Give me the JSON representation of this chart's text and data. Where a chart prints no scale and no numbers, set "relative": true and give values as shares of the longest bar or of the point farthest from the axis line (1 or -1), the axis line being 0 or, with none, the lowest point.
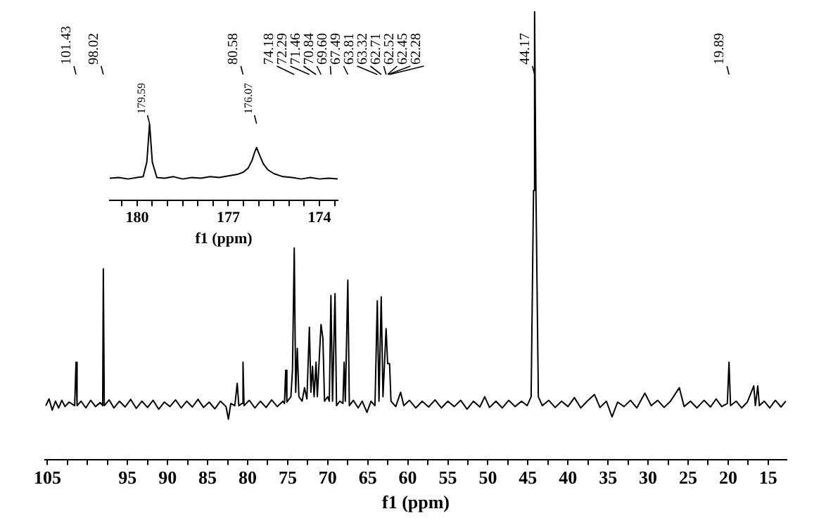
{
  "chart_data": [
    {
      "type": "line",
      "relative": true,
      "xlabel": "f1 (ppm)",
      "xlim": [
        105.3,
        12.7
      ],
      "xticks": [
        105,
        {
          "value": 102.5,
          "label": null
        },
        {
          "value": 100,
          "label": null
        },
        {
          "value": 97.5,
          "label": null
        },
        95,
        {
          "value": 92.5,
          "label": null
        },
        90,
        {
          "value": 87.5,
          "label": null
        },
        85,
        {
          "value": 82.5,
          "label": null
        },
        80,
        {
          "value": 77.5,
          "label": null
        },
        75,
        {
          "value": 72.5,
          "label": null
        },
        70,
        {
          "value": 67.5,
          "label": null
        },
        65,
        {
          "value": 62.5,
          "label": null
        },
        60,
        {
          "value": 57.5,
          "label": null
        },
        55,
        {
          "value": 52.5,
          "label": null
        },
        50,
        {
          "value": 47.5,
          "label": null
        },
        45,
        {
          "value": 42.5,
          "label": null
        },
        40,
        {
          "value": 37.5,
          "label": null
        },
        35,
        {
          "value": 32.5,
          "label": null
        },
        30,
        {
          "value": 27.5,
          "label": null
        },
        25,
        {
          "value": 22.5,
          "label": null
        },
        20,
        {
          "value": 17.5,
          "label": null
        },
        15
      ],
      "series": [
        {
          "color": "#000000",
          "x": [
            105.2,
            104.8,
            104.4,
            104,
            103.6,
            103.2,
            102.8,
            102.3,
            101.6,
            101.43,
            101.3,
            100.8,
            100.2,
            99.6,
            99,
            98.4,
            98.1,
            98.02,
            97.9,
            97.3,
            96.7,
            96,
            95.3,
            94.6,
            93.9,
            93.2,
            92.5,
            91.8,
            91.1,
            90.4,
            89.7,
            89,
            88.3,
            87.6,
            86.9,
            86.2,
            85.5,
            84.8,
            84.1,
            83.4,
            82.7,
            82.4,
            82.1,
            81.6,
            81.3,
            81.1,
            80.7,
            80.58,
            80.45,
            79.8,
            79.1,
            78.4,
            77.7,
            77,
            76.3,
            75.6,
            75.4,
            75.25,
            75.1,
            74.6,
            74.4,
            74.18,
            74,
            73.8,
            73.6,
            73.2,
            72.9,
            72.6,
            72.29,
            72.1,
            71.9,
            71.7,
            71.46,
            71.3,
            70.84,
            70.6,
            70.4,
            70,
            69.8,
            69.6,
            69.4,
            69.09,
            68.9,
            68.5,
            68.1,
            67.95,
            67.8,
            67.49,
            67.3,
            66.8,
            66.2,
            65.7,
            65.1,
            64.6,
            64.1,
            63.81,
            63.6,
            63.32,
            63.1,
            62.71,
            62.52,
            62.45,
            62.28,
            62.1,
            61.5,
            60.9,
            60.5,
            59.8,
            59,
            58.2,
            57.4,
            56.6,
            55.8,
            55,
            54.2,
            53.4,
            52.6,
            51.8,
            51,
            50.4,
            49.8,
            49,
            48.2,
            47.4,
            46.6,
            45.8,
            45.1,
            44.6,
            44.3,
            44.17,
            44,
            43.7,
            43.2,
            42.4,
            41.6,
            40.8,
            40,
            39.2,
            38.4,
            37.6,
            36.7,
            36,
            35.2,
            34.5,
            33.8,
            33,
            32.2,
            31.4,
            30.4,
            29.6,
            28.8,
            28,
            27.2,
            26.1,
            25.5,
            24.7,
            23.9,
            23,
            22.2,
            21.5,
            20.8,
            20.1,
            19.89,
            19.7,
            19,
            18.3,
            17.6,
            16.8,
            16.6,
            16.3,
            16.1,
            15.5,
            14.8,
            14.1,
            13.4,
            12.8
          ],
          "values": [
            0.12,
            0.135,
            0.11,
            0.13,
            0.115,
            0.132,
            0.118,
            0.128,
            0.12,
            0.217,
            0.12,
            0.13,
            0.115,
            0.132,
            0.118,
            0.127,
            0.12,
            0.425,
            0.12,
            0.133,
            0.115,
            0.13,
            0.117,
            0.134,
            0.114,
            0.13,
            0.116,
            0.132,
            0.112,
            0.128,
            0.118,
            0.133,
            0.115,
            0.13,
            0.117,
            0.134,
            0.116,
            0.128,
            0.113,
            0.13,
            0.118,
            0.09,
            0.125,
            0.12,
            0.17,
            0.12,
            0.125,
            0.217,
            0.12,
            0.132,
            0.115,
            0.13,
            0.116,
            0.133,
            0.118,
            0.13,
            0.125,
            0.199,
            0.128,
            0.14,
            0.2,
            0.472,
            0.15,
            0.248,
            0.14,
            0.13,
            0.16,
            0.135,
            0.295,
            0.15,
            0.208,
            0.14,
            0.217,
            0.14,
            0.301,
            0.27,
            0.13,
            0.14,
            0.13,
            0.366,
            0.13,
            0.37,
            0.12,
            0.13,
            0.125,
            0.217,
            0.13,
            0.4,
            0.12,
            0.132,
            0.115,
            0.13,
            0.105,
            0.13,
            0.12,
            0.354,
            0.13,
            0.363,
            0.14,
            0.292,
            0.214,
            0.214,
            0.214,
            0.13,
            0.118,
            0.15,
            0.12,
            0.132,
            0.115,
            0.13,
            0.117,
            0.133,
            0.115,
            0.13,
            0.118,
            0.132,
            0.112,
            0.13,
            0.117,
            0.14,
            0.116,
            0.13,
            0.115,
            0.132,
            0.118,
            0.13,
            0.12,
            0.14,
            0.6,
            1,
            0.6,
            0.14,
            0.12,
            0.132,
            0.116,
            0.13,
            0.118,
            0.138,
            0.115,
            0.13,
            0.145,
            0.116,
            0.13,
            0.095,
            0.128,
            0.118,
            0.132,
            0.115,
            0.148,
            0.12,
            0.132,
            0.116,
            0.13,
            0.16,
            0.118,
            0.13,
            0.115,
            0.132,
            0.117,
            0.135,
            0.118,
            0.125,
            0.217,
            0.12,
            0.13,
            0.115,
            0.128,
            0.164,
            0.12,
            0.164,
            0.12,
            0.13,
            0.115,
            0.132,
            0.117,
            0.13
          ]
        }
      ],
      "annotations": [
        {
          "text": "101.43",
          "x": 101.43
        },
        {
          "text": "98.02",
          "x": 98.02
        },
        {
          "text": "80.58",
          "x": 80.58
        },
        {
          "text": "74.18",
          "x": 74.18
        },
        {
          "text": "72.29",
          "x": 72.29
        },
        {
          "text": "71.46",
          "x": 71.46
        },
        {
          "text": "70.84",
          "x": 70.84
        },
        {
          "text": "69.60",
          "x": 69.6
        },
        {
          "text": "67.49",
          "x": 67.49
        },
        {
          "text": "63.81",
          "x": 63.81
        },
        {
          "text": "63.32",
          "x": 63.32
        },
        {
          "text": "62.71",
          "x": 62.71
        },
        {
          "text": "62.52",
          "x": 62.52
        },
        {
          "text": "62.45",
          "x": 62.45
        },
        {
          "text": "62.28",
          "x": 62.28
        },
        {
          "text": "44.17",
          "x": 44.17
        },
        {
          "text": "19.89",
          "x": 19.89
        }
      ]
    },
    {
      "type": "line",
      "relative": true,
      "xlabel": "f1 (ppm)",
      "xlim": [
        180.9,
        173.4
      ],
      "xticks": [
        {
          "value": 180.5,
          "label": null
        },
        180,
        {
          "value": 179.5,
          "label": null
        },
        {
          "value": 179,
          "label": null
        },
        {
          "value": 178.5,
          "label": null
        },
        {
          "value": 178,
          "label": null
        },
        {
          "value": 177.5,
          "label": null
        },
        177,
        {
          "value": 176.5,
          "label": null
        },
        {
          "value": 176,
          "label": null
        },
        {
          "value": 175.5,
          "label": null
        },
        {
          "value": 175,
          "label": null
        },
        {
          "value": 174.5,
          "label": null
        },
        174,
        {
          "value": 173.5,
          "label": null
        }
      ],
      "series": [
        {
          "color": "#000000",
          "x": [
            180.9,
            180.6,
            180.3,
            180,
            179.8,
            179.68,
            179.59,
            179.5,
            179.35,
            179.1,
            178.8,
            178.5,
            178.2,
            177.9,
            177.6,
            177.3,
            177,
            176.7,
            176.5,
            176.35,
            176.22,
            176.14,
            176.07,
            175.98,
            175.85,
            175.7,
            175.5,
            175.2,
            174.9,
            174.6,
            174.3,
            174,
            173.7,
            173.4
          ],
          "values": [
            0.29,
            0.3,
            0.28,
            0.3,
            0.31,
            0.5,
            1,
            0.5,
            0.3,
            0.29,
            0.31,
            0.28,
            0.3,
            0.29,
            0.31,
            0.3,
            0.32,
            0.34,
            0.37,
            0.42,
            0.52,
            0.62,
            0.69,
            0.6,
            0.48,
            0.4,
            0.35,
            0.31,
            0.3,
            0.28,
            0.3,
            0.28,
            0.29,
            0.28
          ]
        }
      ],
      "annotations": [
        {
          "text": "179.59",
          "x": 179.59
        },
        {
          "text": "176.07",
          "x": 176.07
        }
      ]
    }
  ]
}
